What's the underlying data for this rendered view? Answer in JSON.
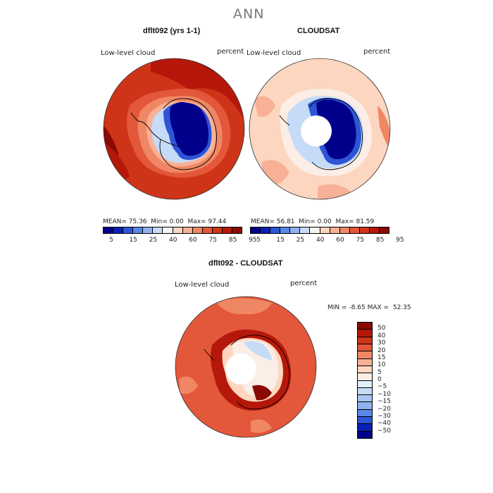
{
  "figure_title": "ANN",
  "colors": {
    "abs_scale": [
      "#00008b",
      "#0a1fb4",
      "#2d55d6",
      "#5a86e6",
      "#8fb2ef",
      "#c6dbf7",
      "#f7f4ef",
      "#fdd6c0",
      "#f8b196",
      "#f08764",
      "#e3573a",
      "#ce3418",
      "#b5180a",
      "#8a0a03"
    ],
    "diff_scale": [
      "#00008b",
      "#0a1fb4",
      "#2d55d6",
      "#5a86e6",
      "#8fb2ef",
      "#a9c6f2",
      "#c6dbf7",
      "#e3eefb",
      "#fbeee6",
      "#fdd6c0",
      "#f8b196",
      "#f08764",
      "#e3573a",
      "#ce3418",
      "#b5180a",
      "#8a0a03"
    ]
  },
  "chart_data": [
    {
      "type": "heatmap",
      "projection": "south-polar-stereographic",
      "title": "dflt092 (yrs 1-1)",
      "left_label": "Low-level cloud",
      "right_label": "percent",
      "stats": {
        "mean_label": "MEAN=",
        "mean": "75.36",
        "min_label": "Min=",
        "min": "0.00",
        "max_label": "Max=",
        "max": "97.44"
      },
      "colorbar": {
        "orientation": "horizontal",
        "levels": [
          5,
          10,
          15,
          20,
          25,
          30,
          40,
          50,
          60,
          70,
          75,
          80,
          85,
          90,
          95
        ]
      },
      "colorbar_tick_labels": [
        "5",
        "15",
        "25",
        "40",
        "60",
        "75",
        "85",
        "95"
      ]
    },
    {
      "type": "heatmap",
      "projection": "south-polar-stereographic",
      "title": "CLOUDSAT",
      "left_label": "Low-level cloud",
      "right_label": "percent",
      "stats": {
        "mean_label": "MEAN=",
        "mean": "56.81",
        "min_label": "Min=",
        "min": "0.00",
        "max_label": "Max=",
        "max": "81.59"
      },
      "colorbar": {
        "orientation": "horizontal",
        "levels": [
          5,
          10,
          15,
          20,
          25,
          30,
          40,
          50,
          60,
          70,
          75,
          80,
          85,
          90,
          95
        ]
      },
      "colorbar_tick_labels": [
        "5",
        "15",
        "25",
        "40",
        "60",
        "75",
        "85",
        "95"
      ]
    },
    {
      "type": "heatmap",
      "projection": "south-polar-stereographic",
      "title": "dflt092 - CLOUDSAT",
      "left_label": "Low-level cloud",
      "right_label": "percent",
      "stats": {
        "min_label": "MIN =",
        "min": "-8.65",
        "max_label": "MAX =",
        "max": "52.35"
      },
      "colorbar": {
        "orientation": "vertical",
        "tick_labels": [
          "50",
          "40",
          "30",
          "20",
          "15",
          "10",
          "5",
          "0",
          "−5",
          "−10",
          "−15",
          "−20",
          "−30",
          "−40",
          "−50"
        ]
      }
    }
  ]
}
